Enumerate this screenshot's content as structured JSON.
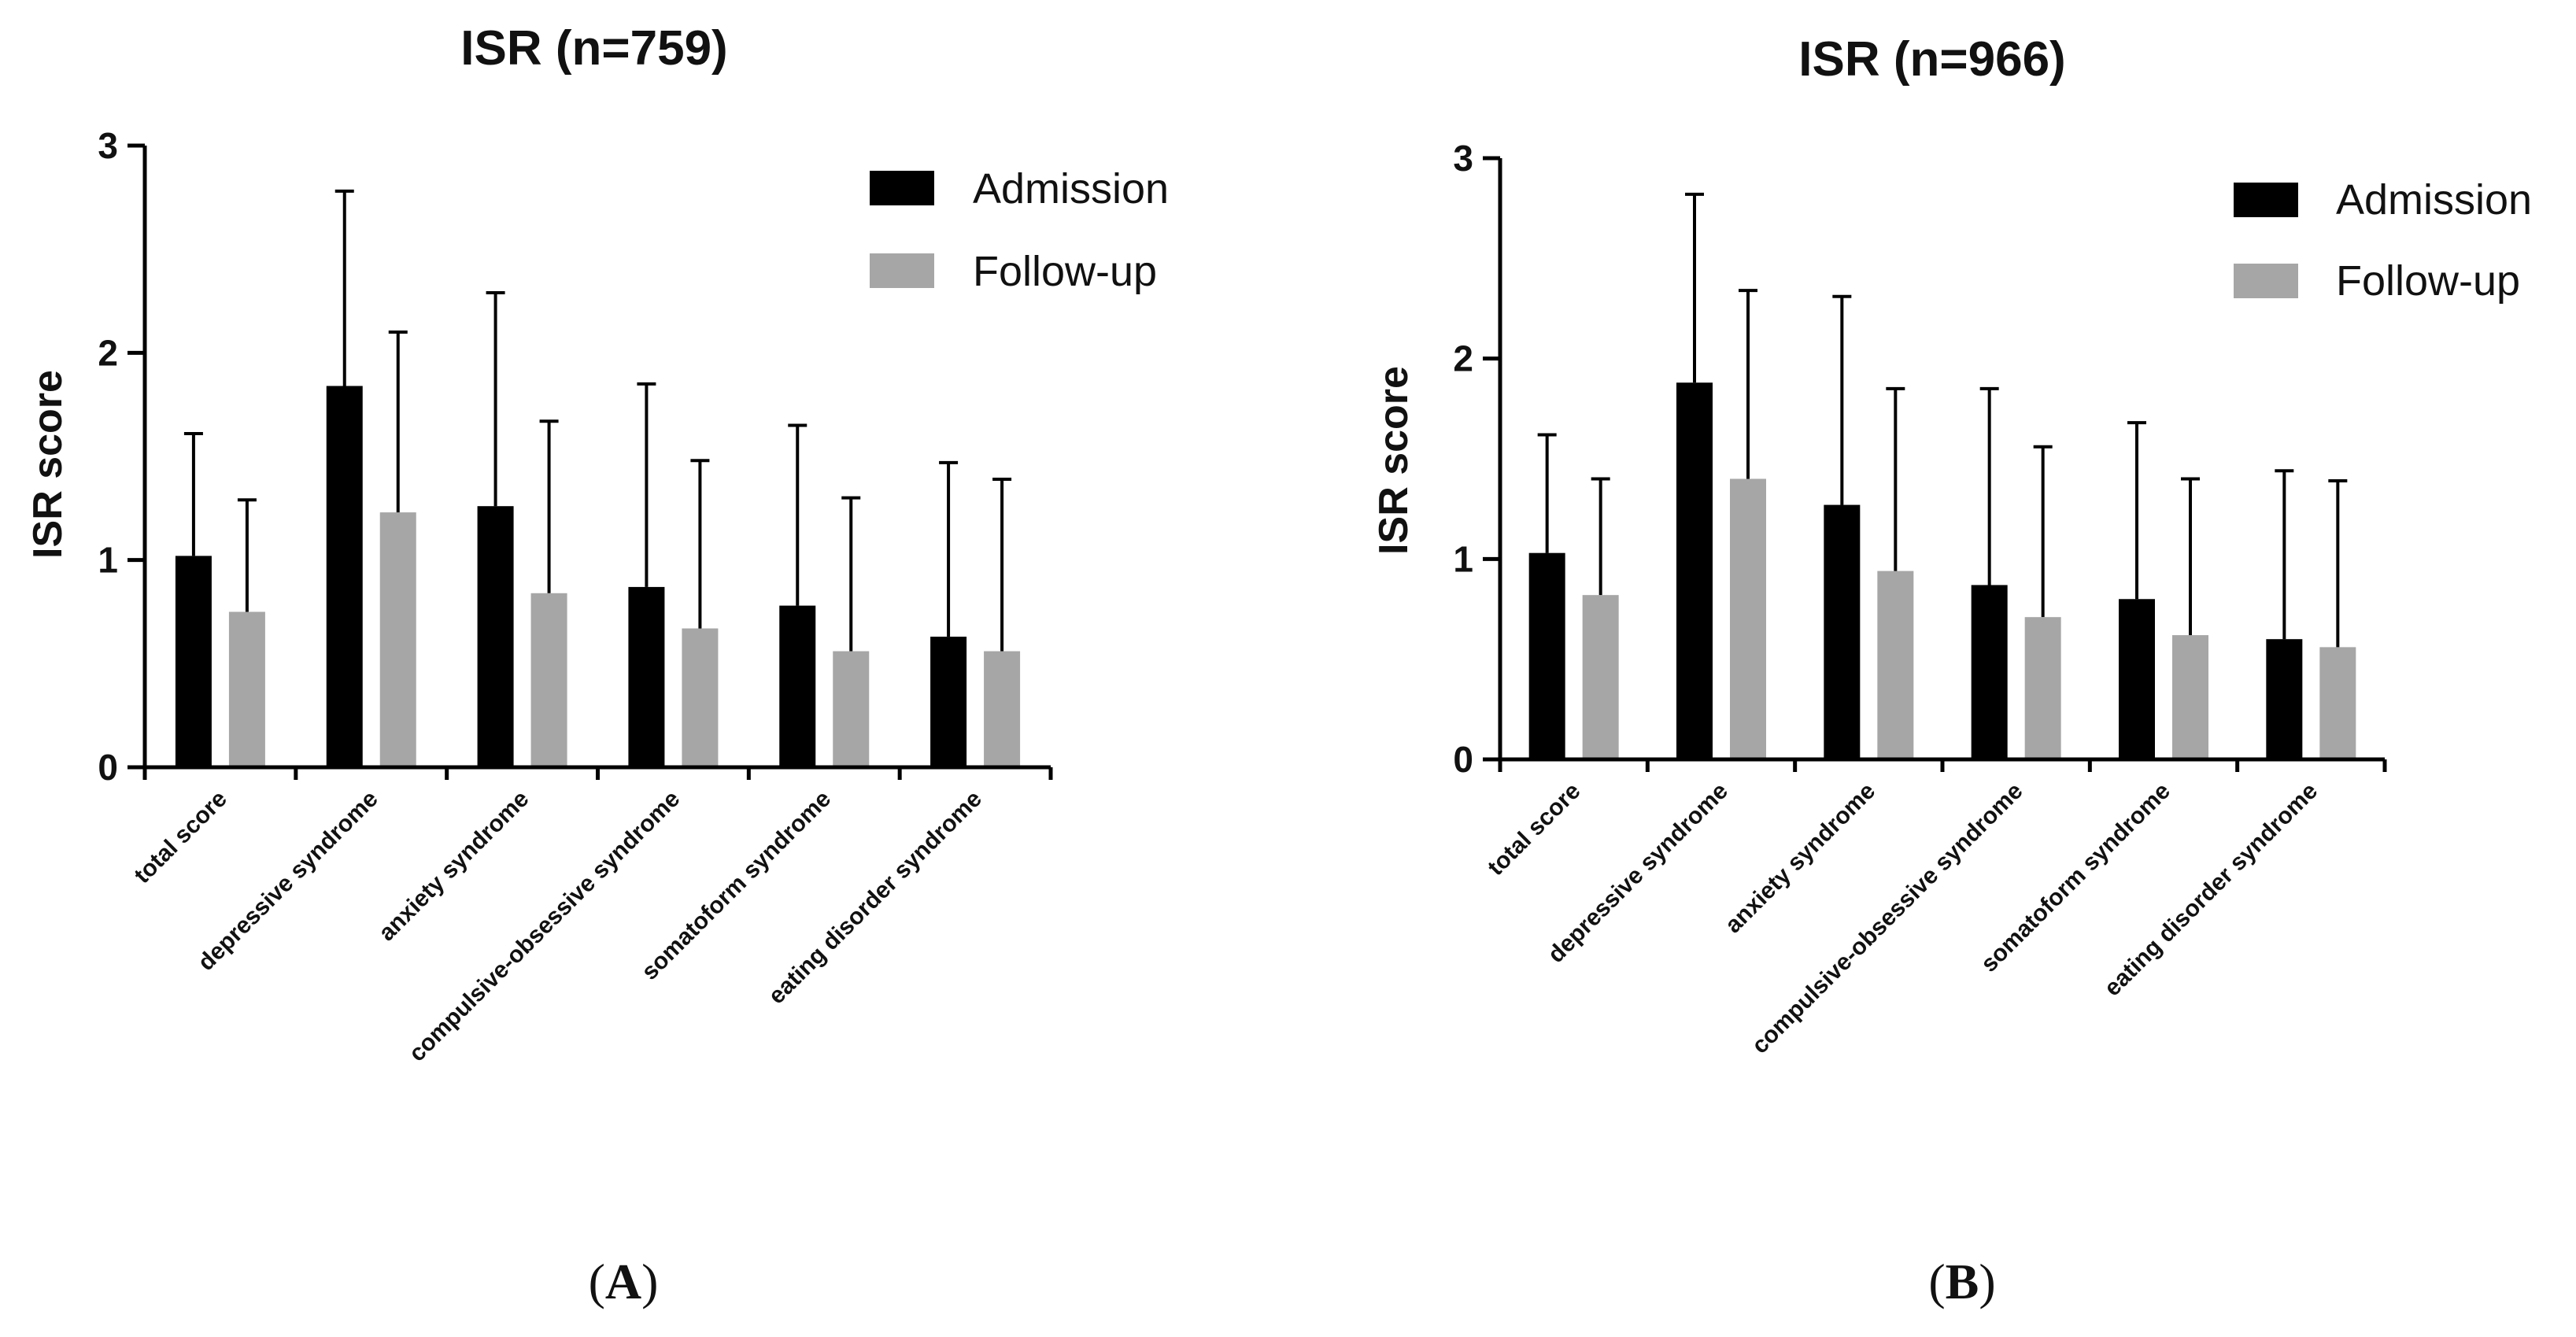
{
  "chart_data": [
    {
      "type": "bar",
      "title": "ISR (n=759)",
      "ylabel": "ISR score",
      "xlabel": "",
      "ylim": [
        0,
        3
      ],
      "yticks": [
        "0",
        "1",
        "2",
        "3"
      ],
      "categories": [
        "total score",
        "depressive syndrome",
        "anxiety syndrome",
        "compulsive-obsessive syndrome",
        "somatoform syndrome",
        "eating disorder syndrome"
      ],
      "series": [
        {
          "name": "Admission",
          "color": "#000000",
          "values": [
            1.02,
            1.84,
            1.26,
            0.87,
            0.78,
            0.63
          ],
          "err_upper": [
            1.61,
            2.78,
            2.29,
            1.85,
            1.65,
            1.47
          ]
        },
        {
          "name": "Follow-up",
          "color": "#a6a6a6",
          "values": [
            0.75,
            1.23,
            0.84,
            0.67,
            0.56,
            0.56
          ],
          "err_upper": [
            1.29,
            2.1,
            1.67,
            1.48,
            1.3,
            1.39
          ]
        }
      ],
      "legend_position": "top-right",
      "panel_label": {
        "open": "(",
        "letter": "A",
        "close": ")"
      }
    },
    {
      "type": "bar",
      "title": "ISR (n=966)",
      "ylabel": "ISR score",
      "xlabel": "",
      "ylim": [
        0,
        3
      ],
      "yticks": [
        "0",
        "1",
        "2",
        "3"
      ],
      "categories": [
        "total score",
        "depressive syndrome",
        "anxiety syndrome",
        "compulsive-obsessive syndrome",
        "somatoform syndrome",
        "eating disorder syndrome"
      ],
      "series": [
        {
          "name": "Admission",
          "color": "#000000",
          "values": [
            1.03,
            1.88,
            1.27,
            0.87,
            0.8,
            0.6
          ],
          "err_upper": [
            1.62,
            2.82,
            2.31,
            1.85,
            1.68,
            1.44
          ]
        },
        {
          "name": "Follow-up",
          "color": "#a6a6a6",
          "values": [
            0.82,
            1.4,
            0.94,
            0.71,
            0.62,
            0.56
          ],
          "err_upper": [
            1.4,
            2.34,
            1.85,
            1.56,
            1.4,
            1.39
          ]
        }
      ],
      "legend_position": "top-right",
      "panel_label": {
        "open": "(",
        "letter": "B",
        "close": ")"
      }
    }
  ]
}
